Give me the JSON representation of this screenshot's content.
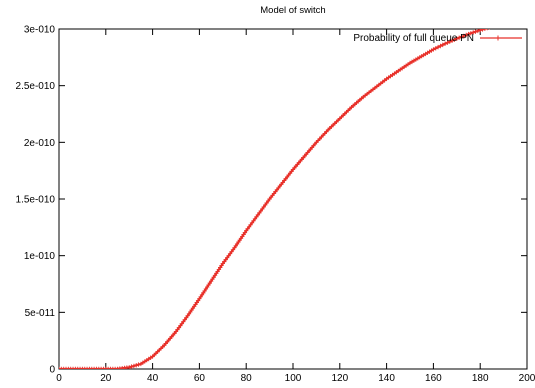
{
  "chart_data": {
    "type": "line",
    "title": "Model of switch",
    "xlabel": "",
    "ylabel": "",
    "xlim": [
      0,
      200
    ],
    "ylim": [
      0,
      3e-10
    ],
    "xticks": [
      0,
      20,
      40,
      60,
      80,
      100,
      120,
      140,
      160,
      180,
      200
    ],
    "xtick_labels": [
      "0",
      "20",
      "40",
      "60",
      "80",
      "100",
      "120",
      "140",
      "160",
      "180",
      "200"
    ],
    "yticks": [
      0,
      5e-11,
      1e-10,
      1.5e-10,
      2e-10,
      2.5e-10,
      3e-10
    ],
    "ytick_labels": [
      "0",
      "5e-011",
      "1e-010",
      "1.5e-010",
      "2e-010",
      "2.5e-010",
      "3e-010"
    ],
    "grid": false,
    "legend": "top-right",
    "series": [
      {
        "name": "Probability of full queue PN",
        "color": "#e8312a",
        "marker": "plus",
        "x": [
          0,
          10,
          20,
          25,
          30,
          35,
          40,
          45,
          50,
          55,
          60,
          65,
          70,
          75,
          80,
          85,
          90,
          95,
          100,
          105,
          110,
          115,
          120,
          125,
          130,
          135,
          140,
          145,
          150,
          155,
          160,
          165,
          170,
          175,
          180,
          185,
          190,
          195,
          200
        ],
        "y": [
          0,
          0,
          0,
          1e-13,
          1.5e-12,
          4.5e-12,
          1.1e-11,
          2.1e-11,
          3.3e-11,
          4.7e-11,
          6.2e-11,
          7.75e-11,
          9.3e-11,
          1.07e-10,
          1.22e-10,
          1.36e-10,
          1.5e-10,
          1.63e-10,
          1.76e-10,
          1.88e-10,
          2e-10,
          2.11e-10,
          2.21e-10,
          2.31e-10,
          2.4e-10,
          2.48e-10,
          2.56e-10,
          2.63e-10,
          2.7e-10,
          2.76e-10,
          2.82e-10,
          2.87e-10,
          2.915e-10,
          2.955e-10,
          2.99e-10,
          3.02e-10,
          3.05e-10,
          3.07e-10,
          3.09e-10
        ]
      }
    ]
  }
}
